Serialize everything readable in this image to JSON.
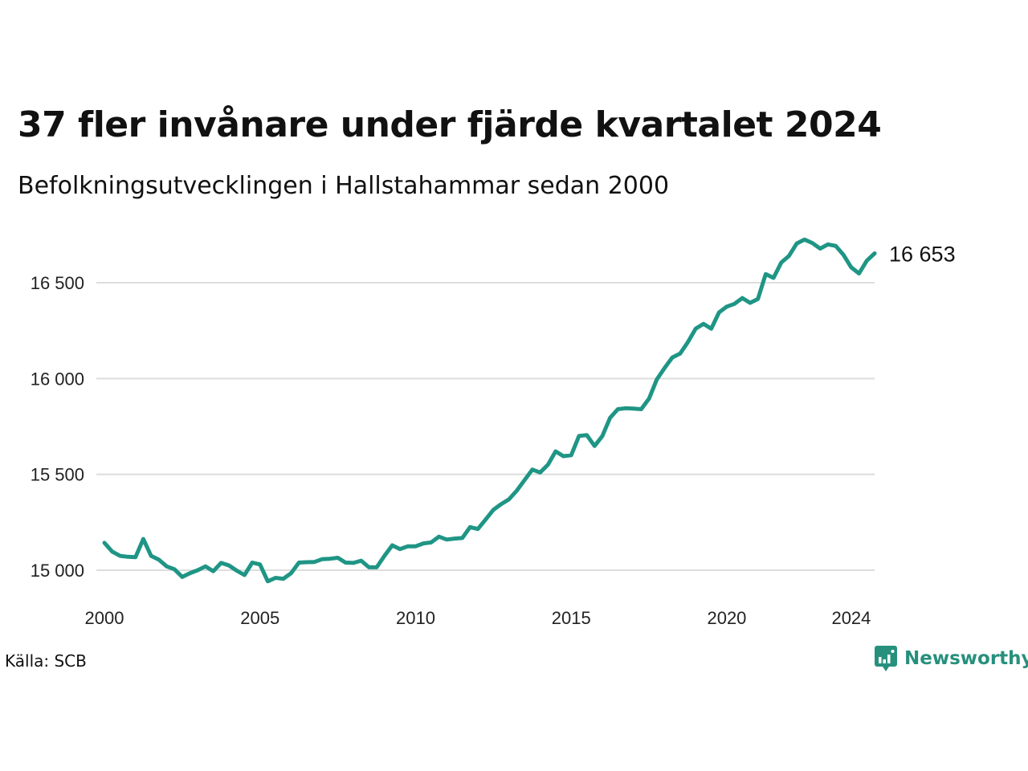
{
  "title": "37 fler invånare under fjärde kvartalet 2024",
  "subtitle": "Befolkningsutvecklingen i Hallstahammar sedan 2000",
  "source": "Källa: SCB",
  "brand": "Newsworthy",
  "colors": {
    "line": "#1f9585",
    "grid": "#dddddd",
    "brand": "#27907d"
  },
  "chart_data": {
    "type": "line",
    "title": "37 fler invånare under fjärde kvartalet 2024",
    "subtitle": "Befolkningsutvecklingen i Hallstahammar sedan 2000",
    "xlabel": "",
    "ylabel": "",
    "xlim": [
      2000,
      2025
    ],
    "ylim": [
      14800,
      16750
    ],
    "grid": "horizontal",
    "x_ticks": [
      {
        "value": 2000,
        "label": "2000"
      },
      {
        "value": 2005,
        "label": "2005"
      },
      {
        "value": 2010,
        "label": "2010"
      },
      {
        "value": 2015,
        "label": "2015"
      },
      {
        "value": 2020,
        "label": "2020"
      },
      {
        "value": 2024,
        "label": "2024"
      }
    ],
    "y_ticks": [
      {
        "value": 15000,
        "label": "15 000"
      },
      {
        "value": 15500,
        "label": "15 500"
      },
      {
        "value": 16000,
        "label": "16 000"
      },
      {
        "value": 16500,
        "label": "16 500"
      }
    ],
    "end_label": "16 653",
    "series": [
      {
        "x": [
          2000.0,
          2000.25,
          2000.5,
          2000.75,
          2001.0,
          2001.25,
          2001.5,
          2001.75,
          2002.0,
          2002.25,
          2002.5,
          2002.75,
          2003.0,
          2003.25,
          2003.5,
          2003.75,
          2004.0,
          2004.25,
          2004.5,
          2004.75,
          2005.0,
          2005.25,
          2005.5,
          2005.75,
          2006.0,
          2006.25,
          2006.5,
          2006.75,
          2007.0,
          2007.25,
          2007.5,
          2007.75,
          2008.0,
          2008.25,
          2008.5,
          2008.75,
          2009.0,
          2009.25,
          2009.5,
          2009.75,
          2010.0,
          2010.25,
          2010.5,
          2010.75,
          2011.0,
          2011.25,
          2011.5,
          2011.75,
          2012.0,
          2012.25,
          2012.5,
          2012.75,
          2013.0,
          2013.25,
          2013.5,
          2013.75,
          2014.0,
          2014.25,
          2014.5,
          2014.75,
          2015.0,
          2015.25,
          2015.5,
          2015.75,
          2016.0,
          2016.25,
          2016.5,
          2016.75,
          2017.0,
          2017.25,
          2017.5,
          2017.75,
          2018.0,
          2018.25,
          2018.5,
          2018.75,
          2019.0,
          2019.25,
          2019.5,
          2019.75,
          2020.0,
          2020.25,
          2020.5,
          2020.75,
          2021.0,
          2021.25,
          2021.5,
          2021.75,
          2022.0,
          2022.25,
          2022.5,
          2022.75,
          2023.0,
          2023.25,
          2023.5,
          2023.75,
          2024.0,
          2024.25,
          2024.5,
          2024.75
        ],
        "values": [
          15143,
          15097,
          15075,
          15070,
          15068,
          15163,
          15075,
          15055,
          15020,
          15005,
          14965,
          14985,
          15000,
          15020,
          14995,
          15038,
          15025,
          14998,
          14975,
          15040,
          15030,
          14942,
          14960,
          14955,
          14985,
          15040,
          15042,
          15043,
          15058,
          15060,
          15065,
          15040,
          15038,
          15050,
          15015,
          15015,
          15075,
          15130,
          15110,
          15125,
          15125,
          15140,
          15145,
          15175,
          15160,
          15165,
          15168,
          15225,
          15215,
          15265,
          15315,
          15345,
          15370,
          15415,
          15470,
          15525,
          15510,
          15550,
          15620,
          15595,
          15600,
          15700,
          15705,
          15648,
          15700,
          15795,
          15840,
          15845,
          15843,
          15840,
          15895,
          15995,
          16055,
          16110,
          16130,
          16190,
          16260,
          16285,
          16260,
          16345,
          16375,
          16390,
          16420,
          16395,
          16415,
          16545,
          16525,
          16605,
          16640,
          16705,
          16725,
          16707,
          16678,
          16700,
          16692,
          16645,
          16580,
          16548,
          16615,
          16653
        ]
      }
    ]
  }
}
